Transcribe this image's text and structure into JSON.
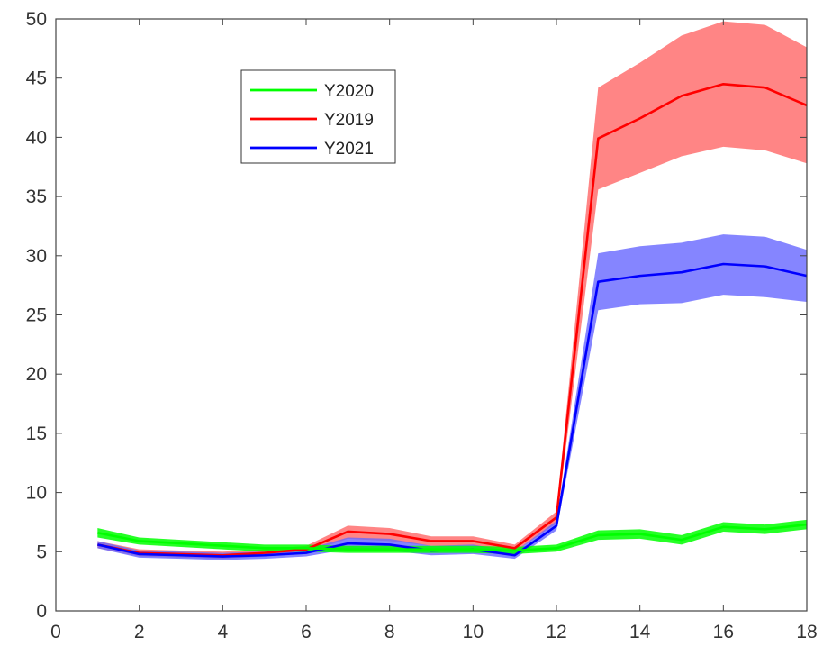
{
  "chart_data": {
    "type": "line",
    "title": "",
    "xlabel": "",
    "ylabel": "",
    "xlim": [
      0,
      18
    ],
    "ylim": [
      0,
      50
    ],
    "xticks": [
      0,
      2,
      4,
      6,
      8,
      10,
      12,
      14,
      16,
      18
    ],
    "yticks": [
      0,
      5,
      10,
      15,
      20,
      25,
      30,
      35,
      40,
      45,
      50
    ],
    "grid": false,
    "legend_position": "upper-left",
    "x": [
      1,
      2,
      3,
      4,
      5,
      6,
      7,
      8,
      9,
      10,
      11,
      12,
      13,
      14,
      15,
      16,
      17,
      18
    ],
    "series": [
      {
        "name": "Y2020",
        "color": "#00ff00",
        "band_color": "#00ff00",
        "values": [
          6.6,
          5.9,
          5.7,
          5.5,
          5.3,
          5.3,
          5.2,
          5.2,
          5.2,
          5.2,
          5.1,
          5.3,
          6.4,
          6.5,
          6.0,
          7.1,
          6.9,
          7.3
        ],
        "lower": [
          6.2,
          5.6,
          5.4,
          5.2,
          5.0,
          5.0,
          4.9,
          4.9,
          4.9,
          4.9,
          4.8,
          5.0,
          6.0,
          6.1,
          5.6,
          6.7,
          6.5,
          6.9
        ],
        "upper": [
          7.0,
          6.2,
          6.0,
          5.8,
          5.6,
          5.6,
          5.5,
          5.5,
          5.5,
          5.5,
          5.4,
          5.6,
          6.8,
          6.9,
          6.4,
          7.5,
          7.3,
          7.7
        ]
      },
      {
        "name": "Y2019",
        "color": "#ff0000",
        "band_color": "#ff6666",
        "values": [
          5.6,
          4.9,
          4.8,
          4.7,
          4.9,
          5.2,
          6.7,
          6.5,
          5.9,
          5.9,
          5.3,
          7.9,
          39.9,
          41.6,
          43.5,
          44.5,
          44.2,
          42.7
        ],
        "lower": [
          5.3,
          4.6,
          4.5,
          4.4,
          4.6,
          4.9,
          6.1,
          5.9,
          5.5,
          5.5,
          5.0,
          7.4,
          35.6,
          37.0,
          38.4,
          39.2,
          38.9,
          37.8
        ],
        "upper": [
          5.9,
          5.2,
          5.1,
          5.0,
          5.2,
          5.5,
          7.2,
          7.0,
          6.3,
          6.3,
          5.6,
          8.4,
          44.2,
          46.3,
          48.6,
          49.8,
          49.5,
          47.6
        ]
      },
      {
        "name": "Y2021",
        "color": "#0000ff",
        "band_color": "#6666ff",
        "values": [
          5.6,
          4.8,
          4.7,
          4.6,
          4.7,
          4.9,
          5.7,
          5.6,
          5.1,
          5.2,
          4.7,
          7.2,
          27.8,
          28.3,
          28.6,
          29.3,
          29.1,
          28.3
        ],
        "lower": [
          5.3,
          4.5,
          4.4,
          4.3,
          4.4,
          4.6,
          5.2,
          5.1,
          4.7,
          4.8,
          4.4,
          6.8,
          25.4,
          25.9,
          26.0,
          26.7,
          26.5,
          26.1
        ],
        "upper": [
          5.9,
          5.1,
          5.0,
          4.9,
          5.0,
          5.2,
          6.2,
          6.1,
          5.5,
          5.6,
          5.0,
          7.6,
          30.2,
          30.8,
          31.1,
          31.8,
          31.6,
          30.5
        ]
      }
    ],
    "legend_order": [
      "Y2020",
      "Y2019",
      "Y2021"
    ]
  }
}
